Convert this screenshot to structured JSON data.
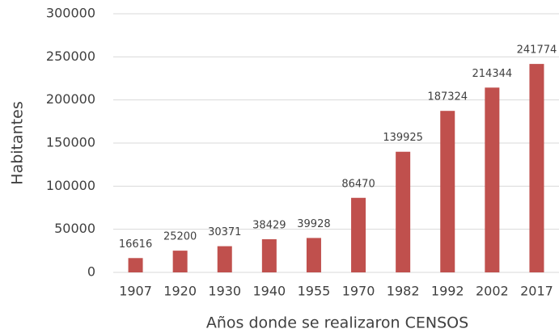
{
  "chart_data": {
    "type": "bar",
    "x_label": "Años donde se realizaron CENSOS",
    "y_label": "Habitantes",
    "categories": [
      "1907",
      "1920",
      "1930",
      "1940",
      "1955",
      "1970",
      "1982",
      "1992",
      "2002",
      "2017"
    ],
    "values": [
      16616,
      25200,
      30371,
      38429,
      39928,
      86470,
      139925,
      187324,
      214344,
      241774
    ],
    "color": "#c0504d",
    "ylim": [
      0,
      300000
    ],
    "yticks": [
      0,
      50000,
      100000,
      150000,
      200000,
      250000,
      300000
    ],
    "grid": true
  }
}
